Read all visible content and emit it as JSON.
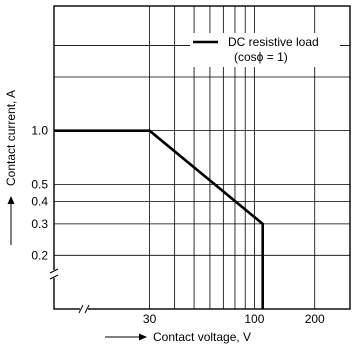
{
  "chart_data": {
    "type": "line",
    "x_scale": "log",
    "y_scale": "log",
    "xlim": [
      10,
      300
    ],
    "ylim": [
      0.1,
      5
    ],
    "grid": true,
    "xlabel": "Contact voltage, V",
    "ylabel": "Contact current, A",
    "x_grid": [
      30,
      40,
      50,
      60,
      70,
      80,
      90,
      100,
      200,
      300
    ],
    "y_grid": [
      0.2,
      0.3,
      0.4,
      0.5,
      1.0,
      2.0,
      3.0
    ],
    "x_ticks": [
      {
        "value": 30,
        "label": "30"
      },
      {
        "value": 100,
        "label": "100"
      },
      {
        "value": 200,
        "label": "200"
      }
    ],
    "y_ticks": [
      {
        "value": 0.2,
        "label": "0.2"
      },
      {
        "value": 0.3,
        "label": "0.3"
      },
      {
        "value": 0.4,
        "label": "0.4"
      },
      {
        "value": 0.5,
        "label": "0.5"
      },
      {
        "value": 1.0,
        "label": "1.0"
      }
    ],
    "series": [
      {
        "name": "DC resistive load",
        "x": [
          10,
          30,
          110,
          110
        ],
        "y": [
          1.0,
          1.0,
          0.3,
          0.1
        ]
      }
    ],
    "legend": {
      "position": "top-right",
      "lines": [
        "DC resistive load",
        "(cosϕ = 1)"
      ]
    },
    "axis_breaks": [
      "x",
      "y"
    ]
  }
}
